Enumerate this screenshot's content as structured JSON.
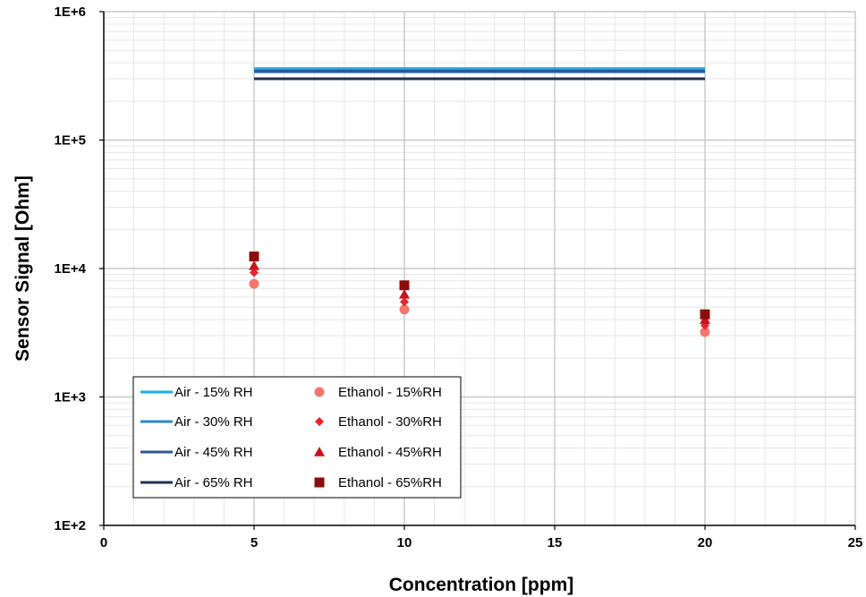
{
  "chart_data": {
    "type": "scatter",
    "title": "",
    "xlabel": "Concentration [ppm]",
    "ylabel": "Sensor Signal [Ohm]",
    "xlim": [
      0,
      25
    ],
    "ylim": [
      100,
      1000000
    ],
    "yscale": "log",
    "x_ticks": [
      0,
      5,
      10,
      15,
      20,
      25
    ],
    "x_tick_labels": [
      "0",
      "5",
      "10",
      "15",
      "20",
      "25"
    ],
    "y_ticks": [
      100,
      1000,
      10000,
      100000,
      1000000
    ],
    "y_tick_labels": [
      "1E+2",
      "1E+3",
      "1E+4",
      "1E+5",
      "1E+6"
    ],
    "grid": true,
    "legend_placement": "bottom-left",
    "series": [
      {
        "name": "Air - 15% RH",
        "kind": "line",
        "color": "#1AB0E0",
        "x": [
          5,
          20
        ],
        "y": [
          360000,
          360000
        ]
      },
      {
        "name": "Air - 30% RH",
        "kind": "line",
        "color": "#2E86D0",
        "x": [
          5,
          20
        ],
        "y": [
          340000,
          340000
        ]
      },
      {
        "name": "Air - 45% RH",
        "kind": "line",
        "color": "#2F5597",
        "x": [
          5,
          20
        ],
        "y": [
          345000,
          345000
        ]
      },
      {
        "name": "Air - 65% RH",
        "kind": "line",
        "color": "#1F2F4F",
        "x": [
          5,
          20
        ],
        "y": [
          300000,
          300000
        ]
      },
      {
        "name": "Ethanol - 15%RH",
        "kind": "marker",
        "marker": "circle",
        "color": "#F4766E",
        "x": [
          5,
          10,
          20
        ],
        "y": [
          7600,
          4800,
          3200
        ]
      },
      {
        "name": "Ethanol - 30%RH",
        "kind": "marker",
        "marker": "diamond",
        "color": "#E8242C",
        "x": [
          5,
          10,
          20
        ],
        "y": [
          9300,
          5500,
          3600
        ]
      },
      {
        "name": "Ethanol - 45%RH",
        "kind": "marker",
        "marker": "triangle",
        "color": "#C8141C",
        "x": [
          5,
          10,
          20
        ],
        "y": [
          10500,
          6300,
          4000
        ]
      },
      {
        "name": "Ethanol - 65%RH",
        "kind": "marker",
        "marker": "square",
        "color": "#8B0D0D",
        "x": [
          5,
          10,
          20
        ],
        "y": [
          12400,
          7400,
          4400
        ]
      }
    ]
  }
}
